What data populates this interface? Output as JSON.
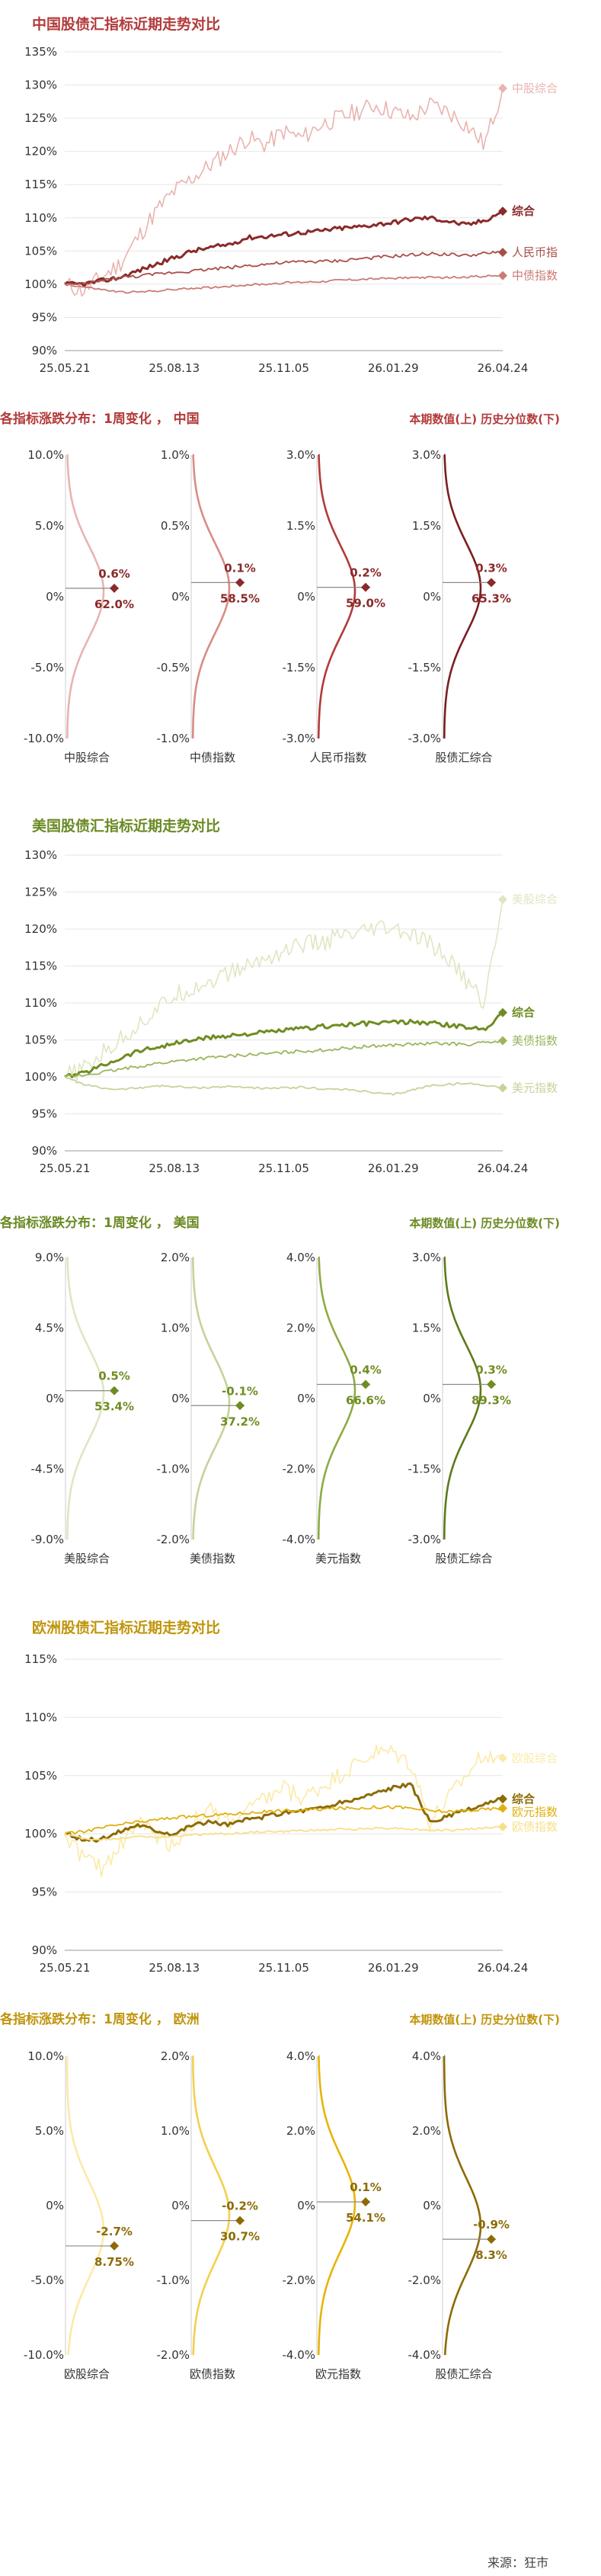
{
  "source": "来源：狂市",
  "header_right": "本期数值(上) 历史分位数(下)",
  "sections": [
    {
      "key": "china",
      "colors": {
        "title": "#b23a3a",
        "c0": "#e8b4b0",
        "c1": "#d98c86",
        "c2": "#b23a3a",
        "c3": "#7a1e22",
        "combo": "#8a2a2a",
        "bond": "#cc7b74",
        "ccy": "#a84e48"
      },
      "line": {
        "title": "中国股债汇指标近期走势对比",
        "chart_data": {
          "type": "line",
          "title": "中国股债汇指标近期走势对比",
          "x_ticks": [
            "25.05.21",
            "25.08.13",
            "25.11.05",
            "26.01.29",
            "26.04.24"
          ],
          "y_ticks": [
            "90%",
            "95%",
            "100%",
            "105%",
            "110%",
            "115%",
            "120%",
            "125%",
            "130%",
            "135%"
          ],
          "ylim": [
            90,
            135
          ],
          "series": [
            {
              "name": "中股综合",
              "end_label": "中股综合",
              "values": [
                100,
                99,
                101,
                103,
                107,
                111,
                114,
                116,
                118,
                120,
                122,
                121,
                123,
                122,
                124,
                125,
                126,
                127,
                126,
                125,
                127,
                126,
                124,
                121,
                129.5
              ]
            },
            {
              "name": "综合",
              "end_label": "综合",
              "values": [
                100,
                100,
                100.5,
                101,
                102,
                103,
                104,
                105,
                105.5,
                106,
                107,
                107.2,
                107.5,
                107.8,
                108,
                108.4,
                108.6,
                109,
                109.3,
                109.8,
                110,
                109.5,
                108.9,
                109.6,
                111
              ]
            },
            {
              "name": "人民币指",
              "end_label": "人民币指",
              "values": [
                100,
                100,
                100.5,
                101,
                101.2,
                101.5,
                101.8,
                102,
                102.3,
                102.5,
                102.8,
                103,
                103.2,
                103.4,
                103.4,
                103.5,
                103.8,
                104,
                104.2,
                104.4,
                104.6,
                104.5,
                104.3,
                104.6,
                104.8
              ]
            },
            {
              "name": "中债指数",
              "end_label": "中债指数",
              "values": [
                100,
                99.6,
                99.2,
                98.8,
                98.8,
                99,
                99.2,
                99.4,
                99.5,
                99.7,
                99.9,
                100,
                100.2,
                100.3,
                100.4,
                100.6,
                100.7,
                100.8,
                100.9,
                101,
                101,
                101,
                101.1,
                101.2,
                101.3
              ]
            }
          ]
        }
      },
      "dist": {
        "title": "各指标涨跌分布：1周变化 ， 中国",
        "chart_data": {
          "type": "distribution",
          "panels": [
            {
              "name": "中股综合",
              "top": "10.0%",
              "mid_up": "5.0%",
              "zero": "0%",
              "mid_dn": "-5.0%",
              "bottom": "-10.0%",
              "range": 10,
              "value": 0.6,
              "value_label": "0.6%",
              "pct_label": "62.0%"
            },
            {
              "name": "中债指数",
              "top": "1.0%",
              "mid_up": "0.5%",
              "zero": "0%",
              "mid_dn": "-0.5%",
              "bottom": "-1.0%",
              "range": 1,
              "value": 0.1,
              "value_label": "0.1%",
              "pct_label": "58.5%"
            },
            {
              "name": "人民币指数",
              "top": "3.0%",
              "mid_up": "1.5%",
              "zero": "0%",
              "mid_dn": "-1.5%",
              "bottom": "-3.0%",
              "range": 3,
              "value": 0.2,
              "value_label": "0.2%",
              "pct_label": "59.0%"
            },
            {
              "name": "股债汇综合",
              "top": "3.0%",
              "mid_up": "1.5%",
              "zero": "0%",
              "mid_dn": "-1.5%",
              "bottom": "-3.0%",
              "range": 3,
              "value": 0.3,
              "value_label": "0.3%",
              "pct_label": "65.3%"
            }
          ]
        }
      }
    },
    {
      "key": "us",
      "colors": {
        "title": "#6b8a24",
        "c0": "#dfe6c3",
        "c1": "#c4d39a",
        "c2": "#8eab45",
        "c3": "#5d7a18",
        "combo": "#6f8c22",
        "bond": "#c5d49a",
        "ccy": "#9bb55d"
      },
      "line": {
        "title": "美国股债汇指标近期走势对比",
        "chart_data": {
          "type": "line",
          "title": "美国股债汇指标近期走势对比",
          "x_ticks": [
            "25.05.21",
            "25.08.13",
            "25.11.05",
            "26.01.29",
            "26.04.24"
          ],
          "y_ticks": [
            "90%",
            "95%",
            "100%",
            "105%",
            "110%",
            "115%",
            "120%",
            "125%",
            "130%"
          ],
          "ylim": [
            90,
            130
          ],
          "series": [
            {
              "name": "美股综合",
              "end_label": "美股综合",
              "values": [
                100,
                101,
                103,
                105,
                107,
                109,
                111,
                112,
                113,
                114,
                115,
                116,
                117,
                118,
                118,
                119,
                119,
                120,
                120,
                119,
                118,
                116,
                113,
                110,
                124
              ]
            },
            {
              "name": "综合",
              "end_label": "综合",
              "values": [
                100,
                100.5,
                101.5,
                102.5,
                103.5,
                104,
                104.5,
                105,
                105.3,
                105.6,
                105.8,
                106,
                106.3,
                106.5,
                106.8,
                107,
                107.1,
                107.3,
                107.4,
                107.4,
                107.3,
                107,
                106.7,
                106.5,
                108.7
              ]
            },
            {
              "name": "美债指数",
              "end_label": "美债指数",
              "values": [
                100,
                100.2,
                100.6,
                101,
                101.4,
                101.8,
                102.1,
                102.4,
                102.6,
                102.8,
                103,
                103.1,
                103.3,
                103.5,
                103.6,
                103.8,
                104,
                104.2,
                104.3,
                104.4,
                104.5,
                104.5,
                104.4,
                104.6,
                104.9
              ]
            },
            {
              "name": "美元指数",
              "end_label": "美元指数",
              "values": [
                100,
                99,
                98.5,
                98.3,
                98.5,
                98.8,
                98.7,
                98.5,
                98.6,
                98.7,
                98.6,
                98.4,
                98.5,
                98.6,
                98.4,
                98.3,
                98.2,
                97.8,
                97.6,
                98.2,
                98.8,
                99,
                99.1,
                98.9,
                98.5
              ]
            }
          ]
        }
      },
      "dist": {
        "title": "各指标涨跌分布：1周变化 ， 美国",
        "chart_data": {
          "type": "distribution",
          "panels": [
            {
              "name": "美股综合",
              "top": "9.0%",
              "mid_up": "4.5%",
              "zero": "0%",
              "mid_dn": "-4.5%",
              "bottom": "-9.0%",
              "range": 9,
              "value": 0.5,
              "value_label": "0.5%",
              "pct_label": "53.4%"
            },
            {
              "name": "美债指数",
              "top": "2.0%",
              "mid_up": "1.0%",
              "zero": "0%",
              "mid_dn": "-1.0%",
              "bottom": "-2.0%",
              "range": 2,
              "value": -0.1,
              "value_label": "-0.1%",
              "pct_label": "37.2%"
            },
            {
              "name": "美元指数",
              "top": "4.0%",
              "mid_up": "2.0%",
              "zero": "0%",
              "mid_dn": "-2.0%",
              "bottom": "-4.0%",
              "range": 4,
              "value": 0.4,
              "value_label": "0.4%",
              "pct_label": "66.6%"
            },
            {
              "name": "股债汇综合",
              "top": "3.0%",
              "mid_up": "1.5%",
              "zero": "0%",
              "mid_dn": "-1.5%",
              "bottom": "-3.0%",
              "range": 3,
              "value": 0.3,
              "value_label": "0.3%",
              "pct_label": "89.3%"
            }
          ]
        }
      }
    },
    {
      "key": "eu",
      "colors": {
        "title": "#c0950c",
        "c0": "#fbeaa8",
        "c1": "#f4cf4f",
        "c2": "#e8b40a",
        "c3": "#8c6b06",
        "combo": "#8c6b06",
        "bond": "#f7df8a",
        "ccy": "#e0b010"
      },
      "line": {
        "title": "欧洲股债汇指标近期走势对比",
        "chart_data": {
          "type": "line",
          "title": "欧洲股债汇指标近期走势对比",
          "x_ticks": [
            "25.05.21",
            "25.08.13",
            "25.11.05",
            "26.01.29",
            "26.04.24"
          ],
          "y_ticks": [
            "90%",
            "95%",
            "100%",
            "105%",
            "110%",
            "115%"
          ],
          "ylim": [
            90,
            115
          ],
          "series": [
            {
              "name": "欧股综合",
              "end_label": "欧股综合",
              "values": [
                100,
                98,
                97,
                99,
                101,
                100,
                99,
                101,
                102,
                101,
                102,
                103,
                104,
                103,
                104,
                105,
                106,
                107,
                107,
                106,
                101,
                103,
                105,
                107,
                106.5
              ]
            },
            {
              "name": "综合",
              "end_label": "综合",
              "values": [
                100,
                99.5,
                99.5,
                100.2,
                100.8,
                100.3,
                100,
                100.8,
                101,
                100.8,
                101.2,
                101.5,
                101.8,
                102,
                102.2,
                102.6,
                103,
                103.5,
                104,
                104.2,
                101,
                101.5,
                102,
                102.5,
                103
              ]
            },
            {
              "name": "欧元指数",
              "end_label": "欧元指数",
              "values": [
                100,
                100.2,
                100.5,
                100.8,
                101,
                101.2,
                101.4,
                101.5,
                101.6,
                101.7,
                101.8,
                101.9,
                102,
                102,
                102.1,
                102.2,
                102.2,
                102.3,
                102.3,
                102.2,
                102,
                101.9,
                102,
                102.1,
                102.2
              ]
            },
            {
              "name": "欧债指数",
              "end_label": "欧债指数",
              "values": [
                100,
                99.6,
                99.5,
                99.6,
                99.8,
                99.7,
                99.8,
                99.9,
                100,
                100,
                100.1,
                100.2,
                100.2,
                100.3,
                100.3,
                100.4,
                100.4,
                100.5,
                100.5,
                100.4,
                100.3,
                100.3,
                100.4,
                100.5,
                100.6
              ]
            }
          ]
        }
      },
      "dist": {
        "title": "各指标涨跌分布：1周变化 ， 欧洲",
        "chart_data": {
          "type": "distribution",
          "panels": [
            {
              "name": "欧股综合",
              "top": "10.0%",
              "mid_up": "5.0%",
              "zero": "0%",
              "mid_dn": "-5.0%",
              "bottom": "-10.0%",
              "range": 10,
              "value": -2.7,
              "value_label": "-2.7%",
              "pct_label": "8.75%"
            },
            {
              "name": "欧债指数",
              "top": "2.0%",
              "mid_up": "1.0%",
              "zero": "0%",
              "mid_dn": "-1.0%",
              "bottom": "-2.0%",
              "range": 2,
              "value": -0.2,
              "value_label": "-0.2%",
              "pct_label": "30.7%"
            },
            {
              "name": "欧元指数",
              "top": "4.0%",
              "mid_up": "2.0%",
              "zero": "0%",
              "mid_dn": "-2.0%",
              "bottom": "-4.0%",
              "range": 4,
              "value": 0.1,
              "value_label": "0.1%",
              "pct_label": "54.1%"
            },
            {
              "name": "股债汇综合",
              "top": "4.0%",
              "mid_up": "2.0%",
              "zero": "0%",
              "mid_dn": "-2.0%",
              "bottom": "-4.0%",
              "range": 4,
              "value": -0.9,
              "value_label": "-0.9%",
              "pct_label": "8.3%"
            }
          ]
        }
      }
    }
  ]
}
